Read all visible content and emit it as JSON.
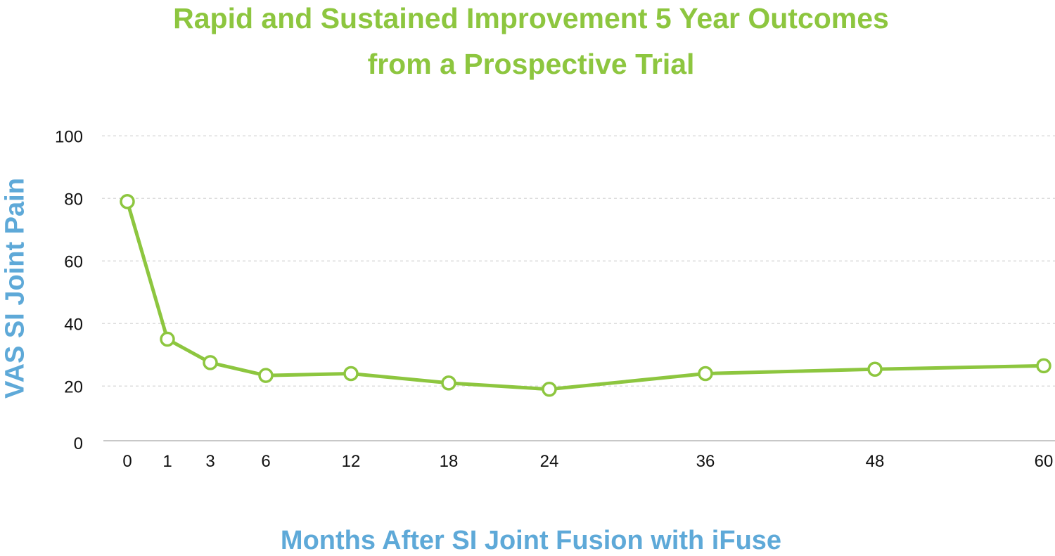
{
  "chart_data": {
    "type": "line",
    "title": [
      "Rapid and Sustained Improvement 5 Year Outcomes",
      "from a Prospective Trial"
    ],
    "xlabel": "Months After SI Joint Fusion with iFuse",
    "ylabel": "VAS SI Joint Pain",
    "categories": [
      "0",
      "1",
      "3",
      "6",
      "12",
      "18",
      "24",
      "36",
      "48",
      "60"
    ],
    "series": [
      {
        "name": "VAS SI Joint Pain",
        "values": [
          79,
          35,
          27.5,
          23.4,
          24,
          21,
          19,
          24,
          25.4,
          26.5
        ],
        "color": "#8dc63f"
      }
    ],
    "yticks": [
      "0",
      "20",
      "40",
      "60",
      "80",
      "100"
    ],
    "ylim": [
      0,
      100
    ],
    "grid": true,
    "legend": "none"
  }
}
